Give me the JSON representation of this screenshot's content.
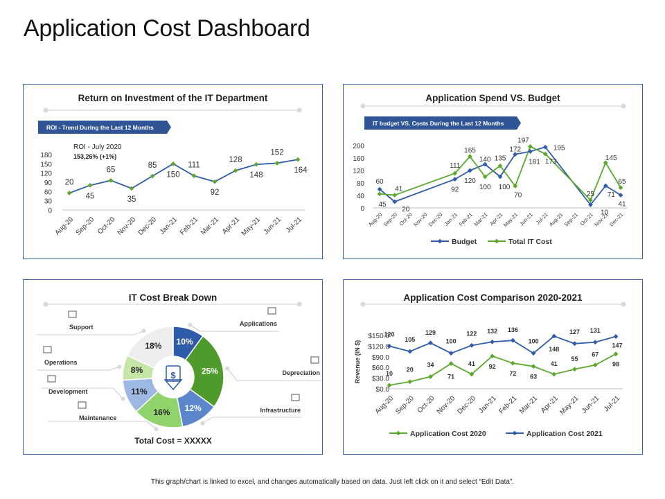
{
  "page": {
    "title": "Application Cost Dashboard",
    "footer": "This graph/chart is linked to excel, and changes automatically based on data. Just left click on it and select “Edit Data”."
  },
  "colors": {
    "blue": "#2e5ca8",
    "green": "#5aa82c",
    "card_border": "#3b5fa6",
    "banner": "#2f5597",
    "donut": [
      "#2e5ca8",
      "#4e9a2a",
      "#5b86cc",
      "#8fd36a",
      "#9db8e2",
      "#c6e6a8",
      "#eeeeee"
    ]
  },
  "chart_data": [
    {
      "id": "roi",
      "type": "line",
      "title": "Return on Investment of the IT Department",
      "banner": "ROI - Trend During the Last 12 Months",
      "annotation_title": "ROI - July 2020",
      "annotation_value": "153,26% (+1%)",
      "categories": [
        "Aug-20",
        "Sep-20",
        "Oct-20",
        "Nov-20",
        "Dec-20",
        "Jan-21",
        "Feb-21",
        "Mar-21",
        "Apr-21",
        "May-21",
        "Jun-21",
        "Jul-21"
      ],
      "series": [
        {
          "name": "ROI",
          "values": [
            20,
            45,
            65,
            35,
            85,
            150,
            111,
            92,
            128,
            148,
            152,
            164
          ]
        }
      ],
      "y_display": [
        55,
        80,
        96,
        70,
        110,
        150,
        111,
        92,
        128,
        148,
        152,
        164
      ],
      "ylim": [
        0,
        180
      ],
      "yticks": [
        "0",
        "30",
        "60",
        "90",
        "120",
        "150",
        "180"
      ],
      "label_pos": [
        "above",
        "below",
        "above",
        "below",
        "above",
        "below",
        "above",
        "below",
        "above",
        "below",
        "above",
        "below"
      ]
    },
    {
      "id": "spend",
      "type": "line",
      "title": "Application Spend VS. Budget",
      "banner": "IT budget VS. Costs During the Last 12 Months",
      "categories": [
        "Aug-20",
        "Sep-20",
        "Oct-20",
        "Nov-20",
        "Dec-20",
        "Jan-21",
        "Feb-21",
        "Mar-21",
        "Apr-21",
        "May-21",
        "Jun-21",
        "Jul-21",
        "Aug-21",
        "Sep-21",
        "Oct-21",
        "Nov-21",
        "Dec-21"
      ],
      "ylim": [
        0,
        200
      ],
      "yticks": [
        "0",
        "40",
        "80",
        "120",
        "160",
        "200"
      ],
      "legend": [
        "Budget",
        "Total IT Cost"
      ],
      "series": [
        {
          "name": "Budget",
          "points": [
            [
              0,
              60
            ],
            [
              1,
              20
            ],
            [
              5,
              92
            ],
            [
              6,
              120
            ],
            [
              7,
              140
            ],
            [
              8,
              100
            ],
            [
              9,
              172
            ],
            [
              10,
              181
            ],
            [
              11,
              195
            ],
            [
              14,
              10
            ],
            [
              15,
              71
            ],
            [
              16,
              41
            ]
          ],
          "labels": [
            [
              "60",
              0,
              -12
            ],
            [
              "20",
              16,
              10
            ],
            [
              "92",
              0,
              14
            ],
            [
              "120",
              0,
              14
            ],
            [
              "140",
              0,
              -8
            ],
            [
              "100",
              6,
              14
            ],
            [
              "172",
              0,
              -8
            ],
            [
              "181",
              6,
              14
            ],
            [
              "195",
              20,
              0
            ],
            [
              "10",
              20,
              10
            ],
            [
              "71",
              8,
              12
            ],
            [
              "41",
              2,
              12
            ]
          ]
        },
        {
          "name": "Total IT Cost",
          "points": [
            [
              0,
              45
            ],
            [
              1,
              41
            ],
            [
              5,
              111
            ],
            [
              6,
              165
            ],
            [
              7,
              100
            ],
            [
              8,
              135
            ],
            [
              9,
              70
            ],
            [
              10,
              197
            ],
            [
              11,
              173
            ],
            [
              14,
              25
            ],
            [
              15,
              145
            ],
            [
              16,
              65
            ]
          ],
          "labels": [
            [
              "45",
              4,
              14
            ],
            [
              "41",
              6,
              -10
            ],
            [
              "111",
              0,
              -12
            ],
            [
              "165",
              0,
              -10
            ],
            [
              "100",
              0,
              14
            ],
            [
              "135",
              0,
              -12
            ],
            [
              "70",
              4,
              12
            ],
            [
              "197",
              -10,
              -10
            ],
            [
              "173",
              8,
              10
            ],
            [
              "25",
              0,
              -10
            ],
            [
              "145",
              8,
              -8
            ],
            [
              "65",
              2,
              -10
            ]
          ]
        }
      ]
    },
    {
      "id": "breakdown",
      "type": "pie",
      "title": "IT Cost Break Down",
      "total_label": "Total Cost = XXXXX",
      "slices": [
        {
          "name": "Applications",
          "value": 10,
          "label": "10%"
        },
        {
          "name": "Depreciation",
          "value": 25,
          "label": "25%"
        },
        {
          "name": "Infrastructure",
          "value": 12,
          "label": "12%"
        },
        {
          "name": "Maintenance",
          "value": 16,
          "label": "16%"
        },
        {
          "name": "Development",
          "value": 11,
          "label": "11%"
        },
        {
          "name": "Operations",
          "value": 8,
          "label": "8%"
        },
        {
          "name": "Support",
          "value": 18,
          "label": "18%"
        }
      ]
    },
    {
      "id": "comparison",
      "type": "line",
      "title": "Application Cost Comparison 2020-2021",
      "ylabel": "Revenue (IN $)",
      "categories": [
        "Aug-20",
        "Sep-20",
        "Oct-20",
        "Nov-20",
        "Dec-20",
        "Jan-21",
        "Feb-21",
        "Mar-21",
        "Apr-21",
        "May-21",
        "Jun-21",
        "Jul-21"
      ],
      "ylim": [
        0,
        150
      ],
      "yticks": [
        "$0.0",
        "$30.0",
        "$60.0",
        "$90.0",
        "$120.0",
        "$150.0"
      ],
      "legend": [
        "Application Cost 2020",
        "Application Cost 2021"
      ],
      "series": [
        {
          "name": "Application Cost 2020",
          "values": [
            10,
            20,
            34,
            71,
            41,
            92,
            72,
            63,
            41,
            55,
            67,
            98
          ]
        },
        {
          "name": "Application Cost 2021",
          "values": [
            120,
            105,
            129,
            100,
            122,
            132,
            136,
            100,
            148,
            127,
            131,
            147
          ]
        }
      ],
      "y_display_2020": [
        10,
        20,
        34,
        71,
        41,
        92,
        72,
        63,
        41,
        55,
        67,
        98
      ],
      "y_display_2021": [
        120,
        105,
        129,
        100,
        122,
        132,
        136,
        100,
        148,
        127,
        131,
        147
      ],
      "label_2020": [
        [
          "10",
          0,
          -14
        ],
        [
          "20",
          0,
          -14
        ],
        [
          "34",
          0,
          -14
        ],
        [
          "71",
          0,
          22
        ],
        [
          "41",
          0,
          -12
        ],
        [
          "92",
          0,
          18
        ],
        [
          "72",
          0,
          18
        ],
        [
          "63",
          0,
          18
        ],
        [
          "41",
          0,
          -12
        ],
        [
          "55",
          0,
          -12
        ],
        [
          "67",
          0,
          -12
        ],
        [
          "98",
          0,
          18
        ]
      ],
      "label_2021": [
        [
          "120",
          0,
          -14
        ],
        [
          "105",
          0,
          -14
        ],
        [
          "129",
          0,
          -12
        ],
        [
          "100",
          0,
          -14
        ],
        [
          "122",
          0,
          -14
        ],
        [
          "132",
          0,
          -12
        ],
        [
          "136",
          0,
          -12
        ],
        [
          "100",
          0,
          -14
        ],
        [
          "148",
          0,
          22
        ],
        [
          "127",
          0,
          -14
        ],
        [
          "131",
          0,
          -14
        ],
        [
          "147",
          2,
          16
        ]
      ]
    }
  ]
}
